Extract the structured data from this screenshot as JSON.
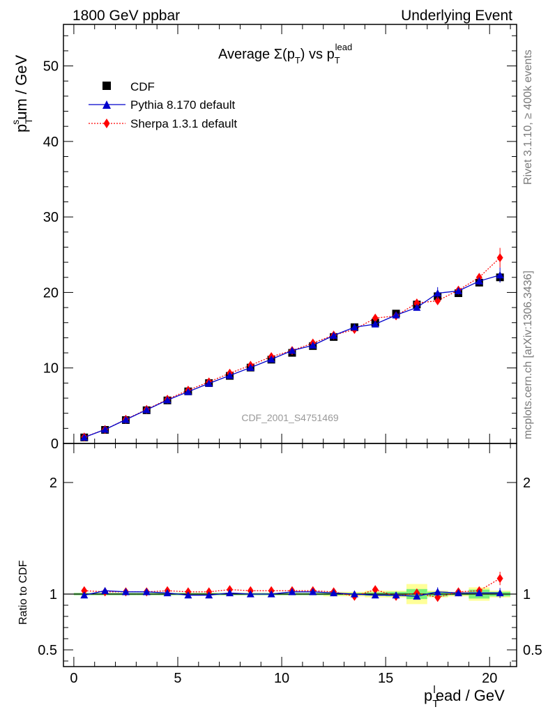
{
  "header": {
    "left": "1800 GeV ppbar",
    "right": "Underlying Event"
  },
  "side_labels": {
    "rivet": "Rivet 3.1.10, ≥ 400k events",
    "mcplots": "mcplots.cern.ch [arXiv:1306.3436]"
  },
  "colors": {
    "cdf": "#000000",
    "pythia": "#0000cc",
    "sherpa": "#ff0000",
    "band_inner": "#7cf07c",
    "band_outer": "#ffff99",
    "watermark": "#999999",
    "side_text": "#7a7a7a"
  },
  "chart_data": {
    "type": "scatter",
    "title": {
      "main": "Average Σ(p",
      "sub_t": "T",
      "mid": ") vs p",
      "sup": "lead",
      "sub_t2": "T"
    },
    "ylabel": {
      "p": "p",
      "sup": "s",
      "sub": "T",
      "rest": "um / GeV"
    },
    "xlabel": {
      "p": "p",
      "sup": "l",
      "sub": "T",
      "rest": "ead / GeV"
    },
    "ratio_ylabel": "Ratio to CDF",
    "watermark": "CDF_2001_S4751469",
    "xlim": [
      -0.5,
      21.3
    ],
    "ylim": [
      0,
      55.5
    ],
    "ratio_ylim": [
      0.35,
      2.35
    ],
    "x_ticks": [
      0,
      5,
      10,
      15,
      20
    ],
    "x_tick_labels": [
      "0",
      "5",
      "10",
      "15",
      "20"
    ],
    "y_ticks": [
      0,
      10,
      20,
      30,
      40,
      50
    ],
    "y_tick_labels": [
      "0",
      "10",
      "20",
      "30",
      "40",
      "50"
    ],
    "ratio_ticks": [
      0.5,
      1,
      2
    ],
    "ratio_tick_labels": [
      "0.5",
      "1",
      "2"
    ],
    "legend": {
      "position": "top-left",
      "entries": [
        {
          "label": "CDF",
          "marker": "square"
        },
        {
          "label": "Pythia 8.170 default",
          "marker": "triangle"
        },
        {
          "label": "Sherpa 1.3.1 default",
          "marker": "diamond"
        }
      ]
    },
    "x": [
      0.5,
      1.5,
      2.5,
      3.5,
      4.5,
      5.5,
      6.5,
      7.5,
      8.5,
      9.5,
      10.5,
      11.5,
      12.5,
      13.5,
      14.5,
      15.5,
      16.5,
      17.5,
      18.5,
      19.5,
      20.5
    ],
    "series": [
      {
        "name": "CDF",
        "values": [
          0.8,
          1.8,
          3.1,
          4.4,
          5.7,
          6.9,
          8.0,
          8.95,
          10.05,
          11.1,
          12.0,
          12.9,
          14.1,
          15.4,
          16.0,
          17.2,
          18.4,
          19.5,
          19.9,
          21.3,
          22.0
        ],
        "errors": [
          0.05,
          0.07,
          0.1,
          0.1,
          0.12,
          0.12,
          0.15,
          0.15,
          0.15,
          0.18,
          0.18,
          0.2,
          0.2,
          0.22,
          0.25,
          0.3,
          0.35,
          0.4,
          0.4,
          0.5,
          0.6
        ],
        "band_inner": [
          0.01,
          0.01,
          0.01,
          0.01,
          0.01,
          0.01,
          0.01,
          0.01,
          0.01,
          0.01,
          0.01,
          0.01,
          0.01,
          0.01,
          0.015,
          0.02,
          0.045,
          0.02,
          0.01,
          0.04,
          0.02
        ],
        "band_outer": [
          0.01,
          0.01,
          0.01,
          0.01,
          0.01,
          0.01,
          0.01,
          0.01,
          0.01,
          0.01,
          0.01,
          0.01,
          0.02,
          0.02,
          0.03,
          0.03,
          0.09,
          0.03,
          0.02,
          0.06,
          0.03
        ]
      },
      {
        "name": "Pythia 8.170 default",
        "values": [
          0.8,
          1.85,
          3.15,
          4.45,
          5.75,
          6.85,
          7.95,
          9.0,
          10.05,
          11.15,
          12.3,
          13.0,
          14.3,
          15.4,
          15.8,
          17.0,
          18.0,
          19.9,
          20.2,
          21.5,
          22.3
        ],
        "errors": [
          0.05,
          0.06,
          0.08,
          0.08,
          0.1,
          0.1,
          0.12,
          0.12,
          0.13,
          0.15,
          0.15,
          0.17,
          0.18,
          0.2,
          0.22,
          0.25,
          0.3,
          0.8,
          0.4,
          0.5,
          1.0
        ]
      },
      {
        "name": "Sherpa 1.3.1 default",
        "values": [
          0.85,
          1.85,
          3.2,
          4.5,
          5.85,
          7.05,
          8.15,
          9.3,
          10.35,
          11.5,
          12.3,
          13.3,
          14.35,
          15.1,
          16.6,
          16.9,
          18.6,
          18.9,
          20.3,
          22.0,
          24.6
        ],
        "errors": [
          0.05,
          0.06,
          0.08,
          0.08,
          0.1,
          0.1,
          0.12,
          0.12,
          0.13,
          0.15,
          0.15,
          0.17,
          0.18,
          0.2,
          0.22,
          0.25,
          0.3,
          0.35,
          0.4,
          0.5,
          1.3
        ]
      }
    ],
    "ratios": [
      {
        "name": "Pythia 8.170 default",
        "values": [
          0.99,
          1.03,
          1.02,
          1.02,
          1.01,
          0.99,
          0.99,
          1.01,
          1.0,
          1.0,
          1.02,
          1.02,
          1.01,
          1.0,
          0.99,
          0.99,
          0.98,
          1.02,
          1.01,
          1.01,
          1.01
        ],
        "errors": [
          0.01,
          0.01,
          0.01,
          0.01,
          0.01,
          0.01,
          0.01,
          0.01,
          0.01,
          0.01,
          0.01,
          0.01,
          0.01,
          0.01,
          0.015,
          0.015,
          0.02,
          0.04,
          0.02,
          0.025,
          0.045
        ]
      },
      {
        "name": "Sherpa 1.3.1 default",
        "values": [
          1.03,
          1.02,
          1.02,
          1.02,
          1.03,
          1.02,
          1.02,
          1.04,
          1.03,
          1.03,
          1.03,
          1.03,
          1.02,
          0.98,
          1.04,
          0.98,
          1.01,
          0.97,
          1.02,
          1.03,
          1.14
        ],
        "errors": [
          0.01,
          0.01,
          0.01,
          0.01,
          0.01,
          0.01,
          0.01,
          0.01,
          0.01,
          0.01,
          0.01,
          0.01,
          0.01,
          0.01,
          0.015,
          0.015,
          0.02,
          0.02,
          0.02,
          0.025,
          0.06
        ]
      }
    ]
  }
}
